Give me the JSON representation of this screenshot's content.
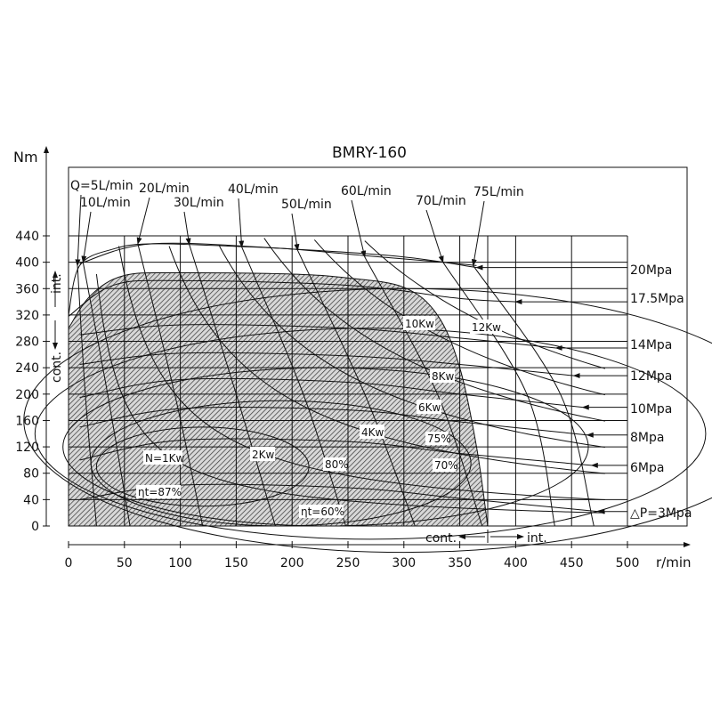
{
  "chart_data": {
    "type": "line",
    "title": "BMRY-160",
    "xlabel": "r/min",
    "ylabel": "Nm",
    "xlim": [
      0,
      500
    ],
    "ylim": [
      0,
      440
    ],
    "xticks": [
      0,
      50,
      100,
      150,
      200,
      250,
      300,
      350,
      400,
      450,
      500
    ],
    "yticks": [
      0,
      40,
      80,
      120,
      160,
      200,
      240,
      280,
      320,
      360,
      400,
      440
    ],
    "grid": true,
    "regions": {
      "continuous_label": "cont.",
      "intermittent_label": "int.",
      "continuous_boundary": [
        [
          0,
          300
        ],
        [
          20,
          350
        ],
        [
          50,
          380
        ],
        [
          100,
          384
        ],
        [
          200,
          382
        ],
        [
          250,
          376
        ],
        [
          300,
          362
        ],
        [
          330,
          320
        ],
        [
          350,
          240
        ],
        [
          365,
          120
        ],
        [
          375,
          0
        ]
      ],
      "intermittent_boundary": [
        [
          0,
          320
        ],
        [
          10,
          395
        ],
        [
          40,
          420
        ],
        [
          75,
          428
        ],
        [
          150,
          424
        ],
        [
          200,
          420
        ],
        [
          265,
          410
        ],
        [
          335,
          400
        ],
        [
          365,
          395
        ]
      ]
    },
    "pressure_series": [
      {
        "name": "20Mpa",
        "points": [
          [
            10,
            398
          ],
          [
            75,
            428
          ],
          [
            200,
            420
          ],
          [
            300,
            408
          ],
          [
            365,
            392
          ]
        ]
      },
      {
        "name": "17.5Mpa",
        "points": [
          [
            0,
            318
          ],
          [
            40,
            365
          ],
          [
            100,
            372
          ],
          [
            250,
            365
          ],
          [
            350,
            345
          ],
          [
            400,
            340
          ]
        ]
      },
      {
        "name": "14Mpa",
        "points": [
          [
            10,
            290
          ],
          [
            100,
            305
          ],
          [
            250,
            300
          ],
          [
            350,
            285
          ],
          [
            436,
            270
          ]
        ]
      },
      {
        "name": "12Mpa",
        "points": [
          [
            10,
            245
          ],
          [
            100,
            262
          ],
          [
            250,
            258
          ],
          [
            350,
            245
          ],
          [
            452,
            228
          ]
        ]
      },
      {
        "name": "10Mpa",
        "points": [
          [
            10,
            195
          ],
          [
            100,
            222
          ],
          [
            250,
            218
          ],
          [
            350,
            200
          ],
          [
            460,
            180
          ]
        ]
      },
      {
        "name": "8Mpa",
        "points": [
          [
            10,
            150
          ],
          [
            100,
            178
          ],
          [
            250,
            176
          ],
          [
            350,
            158
          ],
          [
            464,
            138
          ]
        ]
      },
      {
        "name": "6Mpa",
        "points": [
          [
            10,
            100
          ],
          [
            100,
            130
          ],
          [
            250,
            128
          ],
          [
            350,
            110
          ],
          [
            468,
            92
          ]
        ]
      },
      {
        "name": "△P=3Mpa",
        "points": [
          [
            10,
            40
          ],
          [
            100,
            62
          ],
          [
            250,
            58
          ],
          [
            350,
            42
          ],
          [
            474,
            22
          ]
        ]
      }
    ],
    "flow_series": [
      {
        "name": "Q=5L/min",
        "points": [
          [
            8,
            395
          ],
          [
            15,
            200
          ],
          [
            25,
            0
          ]
        ]
      },
      {
        "name": "10L/min",
        "points": [
          [
            13,
            400
          ],
          [
            35,
            200
          ],
          [
            55,
            0
          ]
        ]
      },
      {
        "name": "20L/min",
        "points": [
          [
            62,
            428
          ],
          [
            95,
            200
          ],
          [
            120,
            0
          ]
        ]
      },
      {
        "name": "30L/min",
        "points": [
          [
            108,
            427
          ],
          [
            150,
            200
          ],
          [
            185,
            0
          ]
        ]
      },
      {
        "name": "40L/min",
        "points": [
          [
            155,
            423
          ],
          [
            210,
            200
          ],
          [
            248,
            0
          ]
        ]
      },
      {
        "name": "50L/min",
        "points": [
          [
            205,
            418
          ],
          [
            265,
            200
          ],
          [
            310,
            0
          ]
        ]
      },
      {
        "name": "60L/min",
        "points": [
          [
            265,
            408
          ],
          [
            330,
            200
          ],
          [
            370,
            0
          ]
        ]
      },
      {
        "name": "70L/min",
        "points": [
          [
            335,
            400
          ],
          [
            410,
            200
          ],
          [
            435,
            0
          ]
        ]
      },
      {
        "name": "75L/min",
        "points": [
          [
            362,
            395
          ],
          [
            440,
            200
          ],
          [
            470,
            0
          ]
        ]
      }
    ],
    "power_series": [
      {
        "name": "N=1Kw",
        "kw": 1
      },
      {
        "name": "2Kw",
        "kw": 2
      },
      {
        "name": "4Kw",
        "kw": 4
      },
      {
        "name": "6Kw",
        "kw": 6
      },
      {
        "name": "8Kw",
        "kw": 8
      },
      {
        "name": "10Kw",
        "kw": 10
      },
      {
        "name": "12Kw",
        "kw": 12
      }
    ],
    "efficiency_labels": [
      "ηt=87%",
      "80%",
      "75%",
      "70%",
      "ηt=60%"
    ]
  }
}
